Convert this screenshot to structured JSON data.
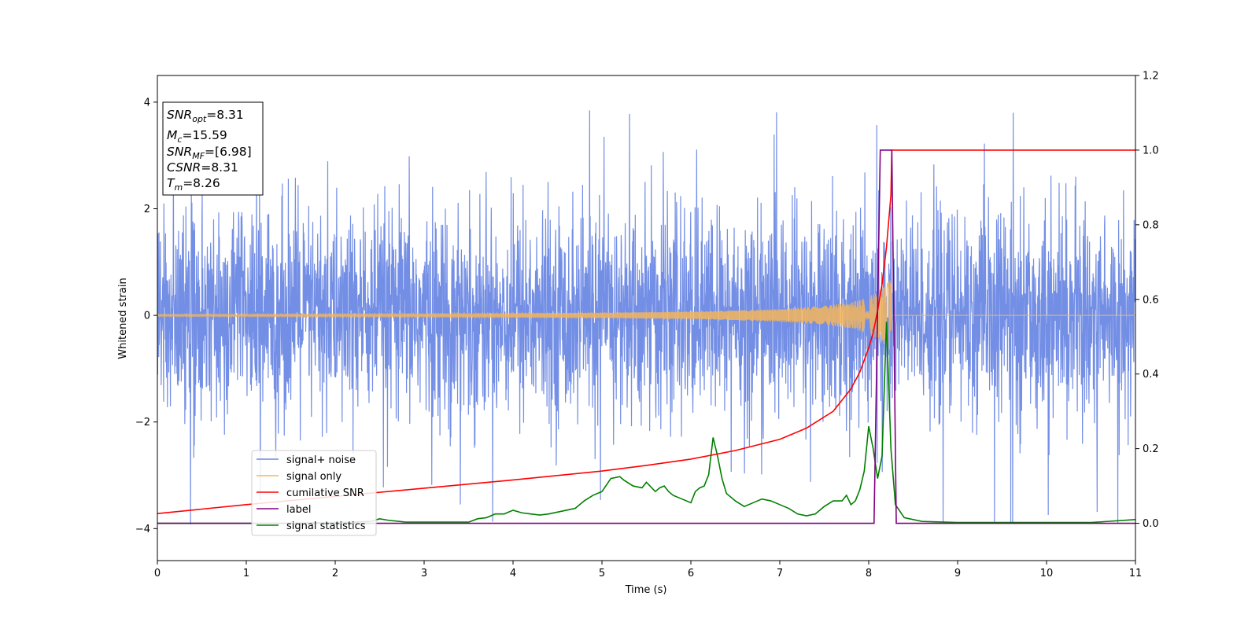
{
  "chart_data": {
    "type": "line",
    "xlabel": "Time (s)",
    "ylabel": "Whitened strain",
    "xlim": [
      0,
      11
    ],
    "ylim": [
      -4.6,
      4.5
    ],
    "y2lim": [
      -0.1,
      1.2
    ],
    "x_ticks": [
      "0",
      "1",
      "2",
      "3",
      "4",
      "5",
      "6",
      "7",
      "8",
      "9",
      "10",
      "11"
    ],
    "y_ticks": [
      "4",
      "2",
      "0",
      "−2",
      "−4"
    ],
    "y2_ticks": [
      "1.2",
      "1.0",
      "0.8",
      "0.6",
      "0.4",
      "0.2",
      "0.0"
    ],
    "grid": false,
    "legend_position": "lower-left",
    "annotation": {
      "lines": [
        {
          "base": "SNR",
          "sub": "opt",
          "rest": "=8.31"
        },
        {
          "base": "M",
          "sub": "c",
          "rest": "=15.59"
        },
        {
          "base": "SNR",
          "sub": "MF",
          "rest": "=[6.98]"
        },
        {
          "base": "CSNR",
          "sub": "",
          "rest": "=8.31"
        },
        {
          "base": "T",
          "sub": "m",
          "rest": "=8.26"
        }
      ]
    },
    "series": [
      {
        "name": "signal+ noise",
        "axis": "left",
        "color": "#6b88e4",
        "kind": "noise",
        "noise_std": 0.95,
        "noise_peak_max": 3.8,
        "noise_trough_min": -3.9,
        "extra_amplitude_envelope": {
          "x": [
            0,
            6.5,
            7.5,
            7.8,
            8.0,
            8.1,
            8.2,
            8.26
          ],
          "amp": [
            0.0,
            0.02,
            0.12,
            0.22,
            0.38,
            0.5,
            0.62,
            0.7
          ]
        }
      },
      {
        "name": "signal only",
        "axis": "left",
        "color": "#f5b55a",
        "kind": "chirp",
        "t_merge": 8.26,
        "envelope": {
          "x": [
            0,
            3,
            5,
            6,
            6.5,
            7,
            7.5,
            7.8,
            8.0,
            8.1,
            8.2,
            8.26
          ],
          "amp": [
            0.02,
            0.03,
            0.05,
            0.07,
            0.09,
            0.12,
            0.18,
            0.24,
            0.35,
            0.45,
            0.58,
            0.7
          ]
        }
      },
      {
        "name": "cumilative SNR",
        "axis": "right",
        "color": "#ff0000",
        "x": [
          0,
          1,
          2,
          3,
          4,
          5,
          5.5,
          6,
          6.5,
          7,
          7.3,
          7.6,
          7.8,
          7.9,
          8.0,
          8.05,
          8.1,
          8.15,
          8.2,
          8.25,
          8.26,
          8.3,
          9,
          10,
          11
        ],
        "y": [
          0.026,
          0.05,
          0.072,
          0.094,
          0.116,
          0.14,
          0.155,
          0.172,
          0.195,
          0.225,
          0.255,
          0.3,
          0.36,
          0.405,
          0.47,
          0.51,
          0.57,
          0.64,
          0.74,
          0.88,
          1.0,
          1.0,
          1.0,
          1.0,
          1.0
        ]
      },
      {
        "name": "label",
        "axis": "right",
        "color": "#800080",
        "x": [
          0,
          8.06,
          8.13,
          8.26,
          8.31,
          11
        ],
        "y": [
          0.0,
          0.0,
          1.0,
          1.0,
          0.0,
          0.0
        ]
      },
      {
        "name": "signal statistics",
        "axis": "right",
        "color": "#008000",
        "x": [
          0,
          0.5,
          1,
          1.5,
          2,
          2.2,
          2.4,
          2.5,
          2.6,
          2.8,
          3,
          3.2,
          3.4,
          3.5,
          3.6,
          3.7,
          3.8,
          3.9,
          4.0,
          4.1,
          4.2,
          4.3,
          4.4,
          4.5,
          4.6,
          4.7,
          4.8,
          4.9,
          5.0,
          5.1,
          5.2,
          5.25,
          5.35,
          5.45,
          5.5,
          5.6,
          5.65,
          5.7,
          5.75,
          5.8,
          5.9,
          6.0,
          6.05,
          6.1,
          6.15,
          6.2,
          6.25,
          6.3,
          6.35,
          6.4,
          6.5,
          6.6,
          6.7,
          6.8,
          6.9,
          7.0,
          7.1,
          7.2,
          7.3,
          7.4,
          7.5,
          7.6,
          7.7,
          7.75,
          7.8,
          7.85,
          7.9,
          7.95,
          8.0,
          8.05,
          8.1,
          8.15,
          8.2,
          8.25,
          8.3,
          8.4,
          8.6,
          9,
          10,
          10.5,
          11
        ],
        "y": [
          0.0,
          0.0,
          0.0,
          0.0,
          0.002,
          0.003,
          0.005,
          0.012,
          0.008,
          0.003,
          0.003,
          0.003,
          0.003,
          0.003,
          0.012,
          0.015,
          0.025,
          0.025,
          0.035,
          0.028,
          0.025,
          0.022,
          0.025,
          0.03,
          0.035,
          0.04,
          0.06,
          0.075,
          0.085,
          0.12,
          0.125,
          0.115,
          0.1,
          0.095,
          0.11,
          0.085,
          0.095,
          0.1,
          0.085,
          0.075,
          0.065,
          0.055,
          0.085,
          0.095,
          0.1,
          0.13,
          0.23,
          0.18,
          0.12,
          0.08,
          0.06,
          0.045,
          0.055,
          0.065,
          0.06,
          0.05,
          0.04,
          0.025,
          0.02,
          0.025,
          0.045,
          0.06,
          0.06,
          0.075,
          0.05,
          0.06,
          0.09,
          0.14,
          0.26,
          0.2,
          0.12,
          0.18,
          0.54,
          0.2,
          0.05,
          0.015,
          0.005,
          0.002,
          0.002,
          0.002,
          0.01
        ]
      }
    ]
  }
}
